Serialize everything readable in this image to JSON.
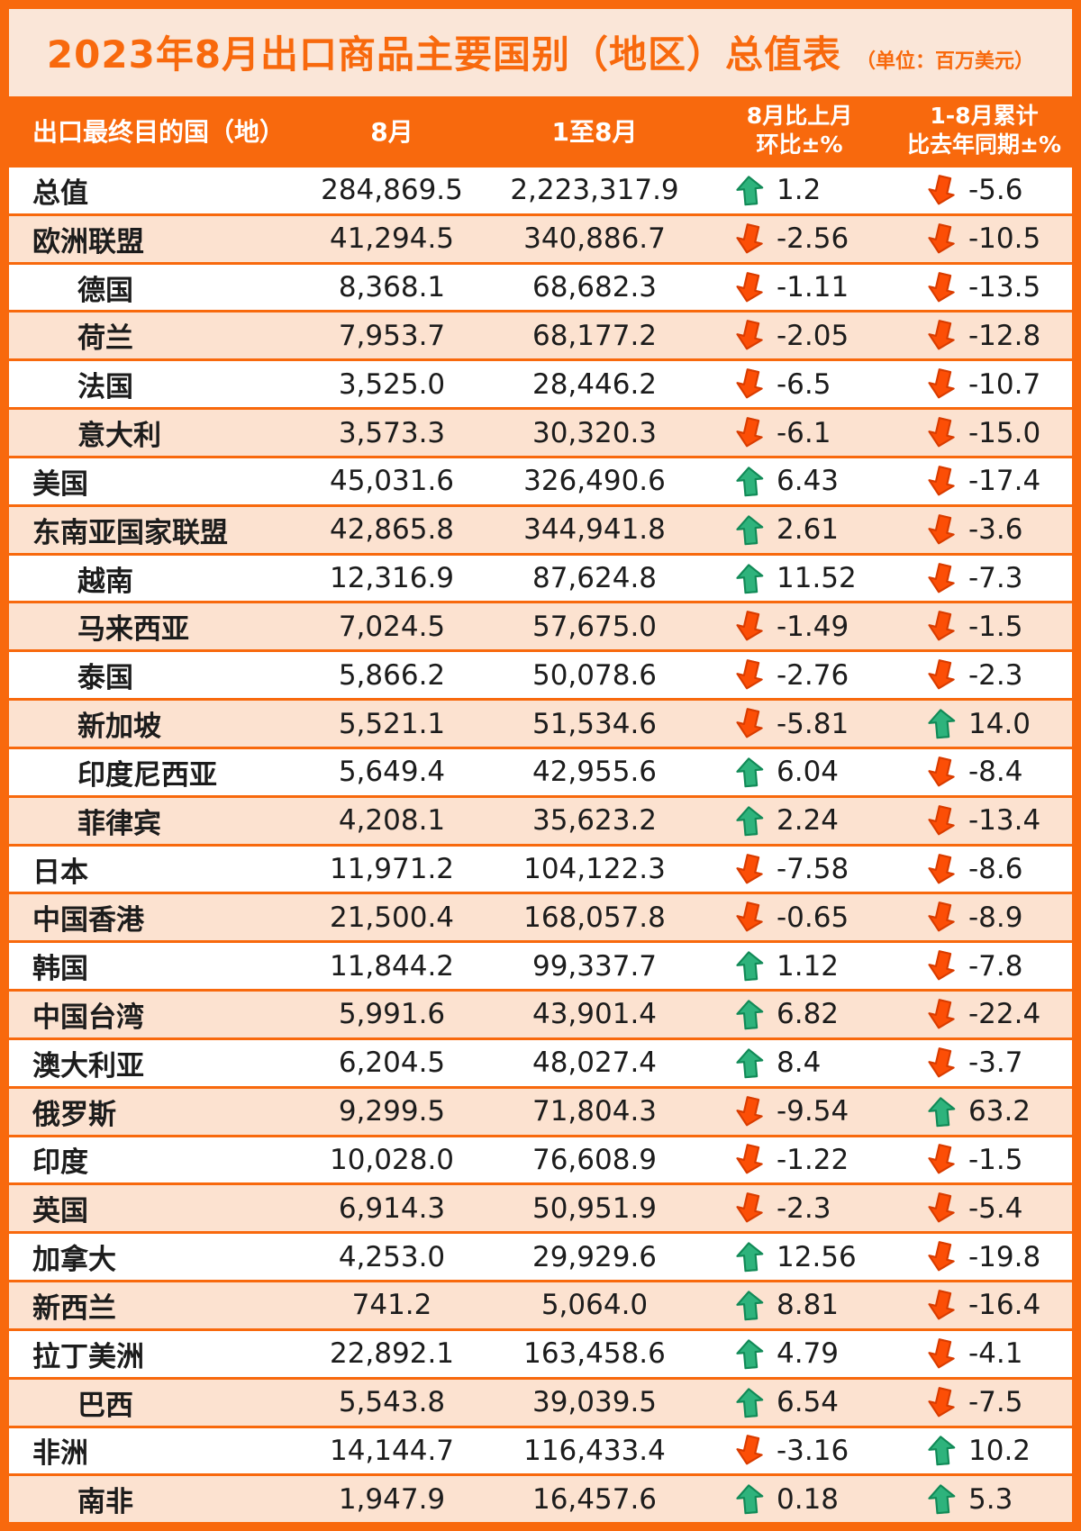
{
  "title": "2023年8月出口商品主要国别（地区）总值表",
  "unit_note": "（单位：百万美元）",
  "header": {
    "col_region": "出口最终目的国（地）",
    "col_aug": "8月",
    "col_jan_aug": "1至8月",
    "col_mom_line1": "8月比上月",
    "col_mom_line2": "环比±%",
    "col_yoy_line1": "1-8月累计",
    "col_yoy_line2": "比去年同期±%"
  },
  "colors": {
    "orange": "#F8690D",
    "title_bg": "#FAE6D8",
    "row_alt_bg": "#FCE2D0",
    "up_arrow_green": "#2EB37C",
    "down_arrow_red": "#FC4E06",
    "text": "#1C1C1C"
  },
  "chart_data": {
    "type": "table",
    "title": "2023年8月出口商品主要国别（地区）总值表",
    "unit": "百万美元",
    "columns": [
      "出口最终目的国（地）",
      "8月",
      "1至8月",
      "8月比上月环比±%",
      "1-8月累计比去年同期±%"
    ],
    "rows": [
      {
        "name": "总值",
        "indent": false,
        "aug": "284,869.5",
        "jan_aug": "2,223,317.9",
        "mom_dir": "up",
        "mom": "1.2",
        "yoy_dir": "down",
        "yoy": "-5.6"
      },
      {
        "name": "欧洲联盟",
        "indent": false,
        "aug": "41,294.5",
        "jan_aug": "340,886.7",
        "mom_dir": "down",
        "mom": "-2.56",
        "yoy_dir": "down",
        "yoy": "-10.5"
      },
      {
        "name": "德国",
        "indent": true,
        "aug": "8,368.1",
        "jan_aug": "68,682.3",
        "mom_dir": "down",
        "mom": "-1.11",
        "yoy_dir": "down",
        "yoy": "-13.5"
      },
      {
        "name": "荷兰",
        "indent": true,
        "aug": "7,953.7",
        "jan_aug": "68,177.2",
        "mom_dir": "down",
        "mom": "-2.05",
        "yoy_dir": "down",
        "yoy": "-12.8"
      },
      {
        "name": "法国",
        "indent": true,
        "aug": "3,525.0",
        "jan_aug": "28,446.2",
        "mom_dir": "down",
        "mom": "-6.5",
        "yoy_dir": "down",
        "yoy": "-10.7"
      },
      {
        "name": "意大利",
        "indent": true,
        "aug": "3,573.3",
        "jan_aug": "30,320.3",
        "mom_dir": "down",
        "mom": "-6.1",
        "yoy_dir": "down",
        "yoy": "-15.0"
      },
      {
        "name": "美国",
        "indent": false,
        "aug": "45,031.6",
        "jan_aug": "326,490.6",
        "mom_dir": "up",
        "mom": "6.43",
        "yoy_dir": "down",
        "yoy": "-17.4"
      },
      {
        "name": "东南亚国家联盟",
        "indent": false,
        "aug": "42,865.8",
        "jan_aug": "344,941.8",
        "mom_dir": "up",
        "mom": "2.61",
        "yoy_dir": "down",
        "yoy": "-3.6"
      },
      {
        "name": "越南",
        "indent": true,
        "aug": "12,316.9",
        "jan_aug": "87,624.8",
        "mom_dir": "up",
        "mom": "11.52",
        "yoy_dir": "down",
        "yoy": "-7.3"
      },
      {
        "name": "马来西亚",
        "indent": true,
        "aug": "7,024.5",
        "jan_aug": "57,675.0",
        "mom_dir": "down",
        "mom": "-1.49",
        "yoy_dir": "down",
        "yoy": "-1.5"
      },
      {
        "name": "泰国",
        "indent": true,
        "aug": "5,866.2",
        "jan_aug": "50,078.6",
        "mom_dir": "down",
        "mom": "-2.76",
        "yoy_dir": "down",
        "yoy": "-2.3"
      },
      {
        "name": "新加坡",
        "indent": true,
        "aug": "5,521.1",
        "jan_aug": "51,534.6",
        "mom_dir": "down",
        "mom": "-5.81",
        "yoy_dir": "up",
        "yoy": "14.0"
      },
      {
        "name": "印度尼西亚",
        "indent": true,
        "aug": "5,649.4",
        "jan_aug": "42,955.6",
        "mom_dir": "up",
        "mom": "6.04",
        "yoy_dir": "down",
        "yoy": "-8.4"
      },
      {
        "name": "菲律宾",
        "indent": true,
        "aug": "4,208.1",
        "jan_aug": "35,623.2",
        "mom_dir": "up",
        "mom": "2.24",
        "yoy_dir": "down",
        "yoy": "-13.4"
      },
      {
        "name": "日本",
        "indent": false,
        "aug": "11,971.2",
        "jan_aug": "104,122.3",
        "mom_dir": "down",
        "mom": "-7.58",
        "yoy_dir": "down",
        "yoy": "-8.6"
      },
      {
        "name": "中国香港",
        "indent": false,
        "aug": "21,500.4",
        "jan_aug": "168,057.8",
        "mom_dir": "down",
        "mom": "-0.65",
        "yoy_dir": "down",
        "yoy": "-8.9"
      },
      {
        "name": "韩国",
        "indent": false,
        "aug": "11,844.2",
        "jan_aug": "99,337.7",
        "mom_dir": "up",
        "mom": "1.12",
        "yoy_dir": "down",
        "yoy": "-7.8"
      },
      {
        "name": "中国台湾",
        "indent": false,
        "aug": "5,991.6",
        "jan_aug": "43,901.4",
        "mom_dir": "up",
        "mom": "6.82",
        "yoy_dir": "down",
        "yoy": "-22.4"
      },
      {
        "name": "澳大利亚",
        "indent": false,
        "aug": "6,204.5",
        "jan_aug": "48,027.4",
        "mom_dir": "up",
        "mom": "8.4",
        "yoy_dir": "down",
        "yoy": "-3.7"
      },
      {
        "name": "俄罗斯",
        "indent": false,
        "aug": "9,299.5",
        "jan_aug": "71,804.3",
        "mom_dir": "down",
        "mom": "-9.54",
        "yoy_dir": "up",
        "yoy": "63.2"
      },
      {
        "name": "印度",
        "indent": false,
        "aug": "10,028.0",
        "jan_aug": "76,608.9",
        "mom_dir": "down",
        "mom": "-1.22",
        "yoy_dir": "down",
        "yoy": "-1.5"
      },
      {
        "name": "英国",
        "indent": false,
        "aug": "6,914.3",
        "jan_aug": "50,951.9",
        "mom_dir": "down",
        "mom": "-2.3",
        "yoy_dir": "down",
        "yoy": "-5.4"
      },
      {
        "name": "加拿大",
        "indent": false,
        "aug": "4,253.0",
        "jan_aug": "29,929.6",
        "mom_dir": "up",
        "mom": "12.56",
        "yoy_dir": "down",
        "yoy": "-19.8"
      },
      {
        "name": "新西兰",
        "indent": false,
        "aug": "741.2",
        "jan_aug": "5,064.0",
        "mom_dir": "up",
        "mom": "8.81",
        "yoy_dir": "down",
        "yoy": "-16.4"
      },
      {
        "name": "拉丁美洲",
        "indent": false,
        "aug": "22,892.1",
        "jan_aug": "163,458.6",
        "mom_dir": "up",
        "mom": "4.79",
        "yoy_dir": "down",
        "yoy": "-4.1"
      },
      {
        "name": "巴西",
        "indent": true,
        "aug": "5,543.8",
        "jan_aug": "39,039.5",
        "mom_dir": "up",
        "mom": "6.54",
        "yoy_dir": "down",
        "yoy": "-7.5"
      },
      {
        "name": "非洲",
        "indent": false,
        "aug": "14,144.7",
        "jan_aug": "116,433.4",
        "mom_dir": "down",
        "mom": "-3.16",
        "yoy_dir": "up",
        "yoy": "10.2"
      },
      {
        "name": "南非",
        "indent": true,
        "aug": "1,947.9",
        "jan_aug": "16,457.6",
        "mom_dir": "up",
        "mom": "0.18",
        "yoy_dir": "up",
        "yoy": "5.3"
      }
    ]
  }
}
